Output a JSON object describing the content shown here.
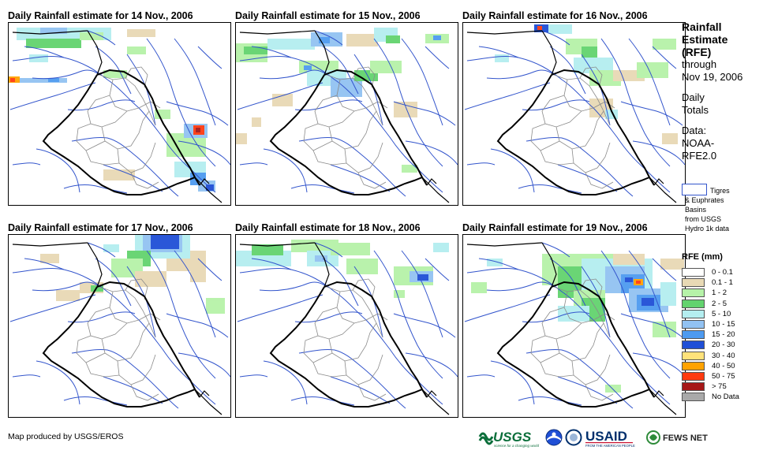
{
  "panels": [
    {
      "title": "Daily Rainfall estimate for 14 Nov., 2006"
    },
    {
      "title": "Daily Rainfall estimate for 15 Nov., 2006"
    },
    {
      "title": "Daily Rainfall estimate for 16 Nov., 2006"
    },
    {
      "title": "Daily Rainfall estimate for 17 Nov., 2006"
    },
    {
      "title": "Daily Rainfall estimate for 18 Nov., 2006"
    },
    {
      "title": "Daily Rainfall estimate for 19 Nov., 2006"
    }
  ],
  "sidebar": {
    "title_l1": "Rainfall",
    "title_l2": "Estimate",
    "title_l3": "(RFE)",
    "through": "through",
    "date": "Nov 19, 2006",
    "daily": "Daily",
    "totals": "Totals",
    "data_label": "Data:",
    "data_l1": "NOAA-",
    "data_l2": "RFE2.0"
  },
  "basin_key": {
    "l1": "Tigres",
    "l2": "& Euphrates",
    "l3": "Basins",
    "l4": "from USGS",
    "l5": "Hydro 1k data",
    "color": "#3355cc"
  },
  "legend": {
    "title": "RFE (mm)",
    "items": [
      {
        "label": "0 - 0.1",
        "color": "#ffffff"
      },
      {
        "label": "0.1 - 1",
        "color": "#e8d9b5"
      },
      {
        "label": "1 - 2",
        "color": "#b6f2a8"
      },
      {
        "label": "2 - 5",
        "color": "#63d36e"
      },
      {
        "label": "5 - 10",
        "color": "#b4eef0"
      },
      {
        "label": "10 - 15",
        "color": "#92c2f2"
      },
      {
        "label": "15 - 20",
        "color": "#4d9af0"
      },
      {
        "label": "20 - 30",
        "color": "#1f4fd6"
      },
      {
        "label": "30 - 40",
        "color": "#ffe27a"
      },
      {
        "label": "40 - 50",
        "color": "#ffa200"
      },
      {
        "label": "50 - 75",
        "color": "#ff3a10"
      },
      {
        "label": "> 75",
        "color": "#a61818"
      },
      {
        "label": "No Data",
        "color": "#a9a9a9"
      }
    ]
  },
  "credit": "Map produced by USGS/EROS",
  "logos": {
    "usgs": "USGS",
    "usgs_tag": "science for a changing world",
    "usaid": "USAID",
    "usaid_tag": "FROM THE AMERICAN PEOPLE",
    "fews": "FEWS NET"
  }
}
